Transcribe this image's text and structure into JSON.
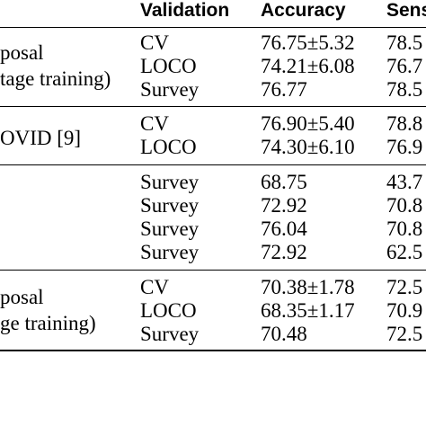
{
  "header": {
    "validation": "Validation",
    "accuracy": "Accuracy",
    "sensitivity": "Sens"
  },
  "groups": [
    {
      "label_lines": [
        "posal",
        "tage training)"
      ],
      "rows": [
        {
          "validation": "CV",
          "accuracy": "76.75±5.32",
          "sensitivity": "78.5"
        },
        {
          "validation": "LOCO",
          "accuracy": "74.21±6.08",
          "sensitivity": "76.7"
        },
        {
          "validation": "Survey",
          "accuracy": "76.77",
          "sensitivity": "78.5"
        }
      ]
    },
    {
      "label_lines": [
        "OVID [9]"
      ],
      "rows": [
        {
          "validation": "CV",
          "accuracy": "76.90±5.40",
          "sensitivity": "78.8"
        },
        {
          "validation": "LOCO",
          "accuracy": "74.30±6.10",
          "sensitivity": "76.9"
        }
      ]
    },
    {
      "label_lines": [],
      "rows": [
        {
          "validation": "Survey",
          "accuracy": "68.75",
          "sensitivity": "43.7"
        },
        {
          "validation": "Survey",
          "accuracy": "72.92",
          "sensitivity": "70.8"
        },
        {
          "validation": "Survey",
          "accuracy": "76.04",
          "sensitivity": "70.8"
        },
        {
          "validation": "Survey",
          "accuracy": "72.92",
          "sensitivity": "62.5"
        }
      ]
    },
    {
      "label_lines": [
        "posal",
        "ge training)"
      ],
      "rows": [
        {
          "validation": "CV",
          "accuracy": "70.38±1.78",
          "sensitivity": "72.5"
        },
        {
          "validation": "LOCO",
          "accuracy": "68.35±1.17",
          "sensitivity": "70.9"
        },
        {
          "validation": "Survey",
          "accuracy": "70.48",
          "sensitivity": "72.5"
        }
      ]
    }
  ]
}
